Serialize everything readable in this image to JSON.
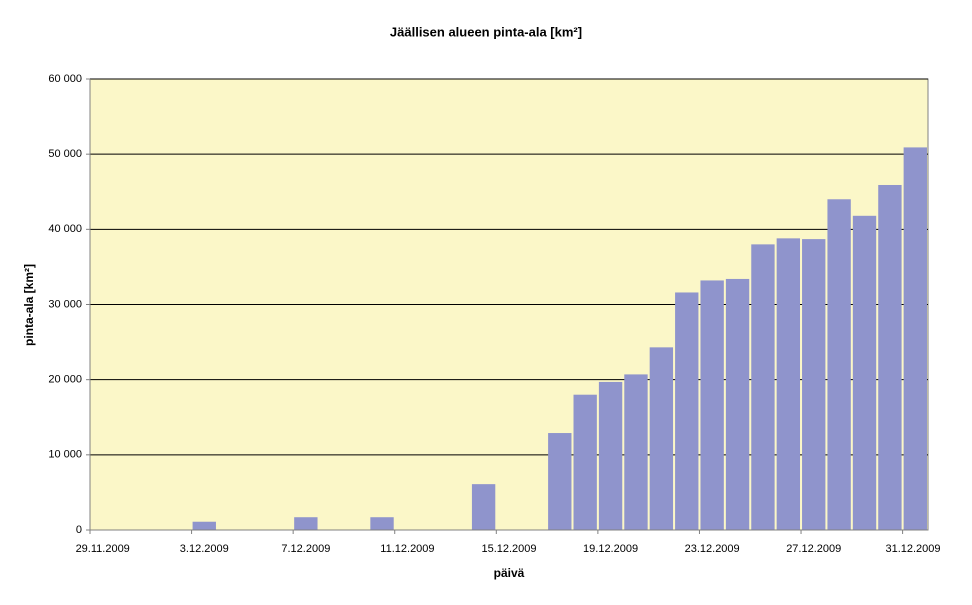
{
  "chart_data": {
    "type": "bar",
    "title": "Jäällisen alueen pinta-ala [km²]",
    "xlabel": "päivä",
    "ylabel": "pinta-ala [km²]",
    "categories": [
      "29.11.2009",
      null,
      null,
      null,
      "3.12.2009",
      null,
      null,
      null,
      "7.12.2009",
      null,
      null,
      null,
      "11.12.2009",
      null,
      null,
      null,
      "15.12.2009",
      null,
      null,
      null,
      "19.12.2009",
      null,
      null,
      null,
      "23.12.2009",
      null,
      null,
      null,
      "27.12.2009",
      null,
      null,
      null,
      "31.12.2009"
    ],
    "values": [
      0,
      0,
      0,
      0,
      1100,
      0,
      0,
      0,
      1700,
      0,
      0,
      1700,
      0,
      0,
      0,
      6100,
      0,
      0,
      12900,
      18000,
      19700,
      20700,
      24300,
      31600,
      33200,
      33400,
      38000,
      38800,
      38700,
      44000,
      41800,
      45900,
      50900
    ],
    "color": "#8f94cc",
    "background": "#fbf7c8",
    "ylim": [
      0,
      60000
    ],
    "yticks": [
      0,
      {
        "value": 10000,
        "label": "10 000"
      },
      {
        "value": 20000,
        "label": "20 000"
      },
      {
        "value": 30000,
        "label": "30 000"
      },
      {
        "value": 40000,
        "label": "40 000"
      },
      {
        "value": 50000,
        "label": "50 000"
      },
      {
        "value": 60000,
        "label": "60 000"
      }
    ],
    "grid": true
  }
}
